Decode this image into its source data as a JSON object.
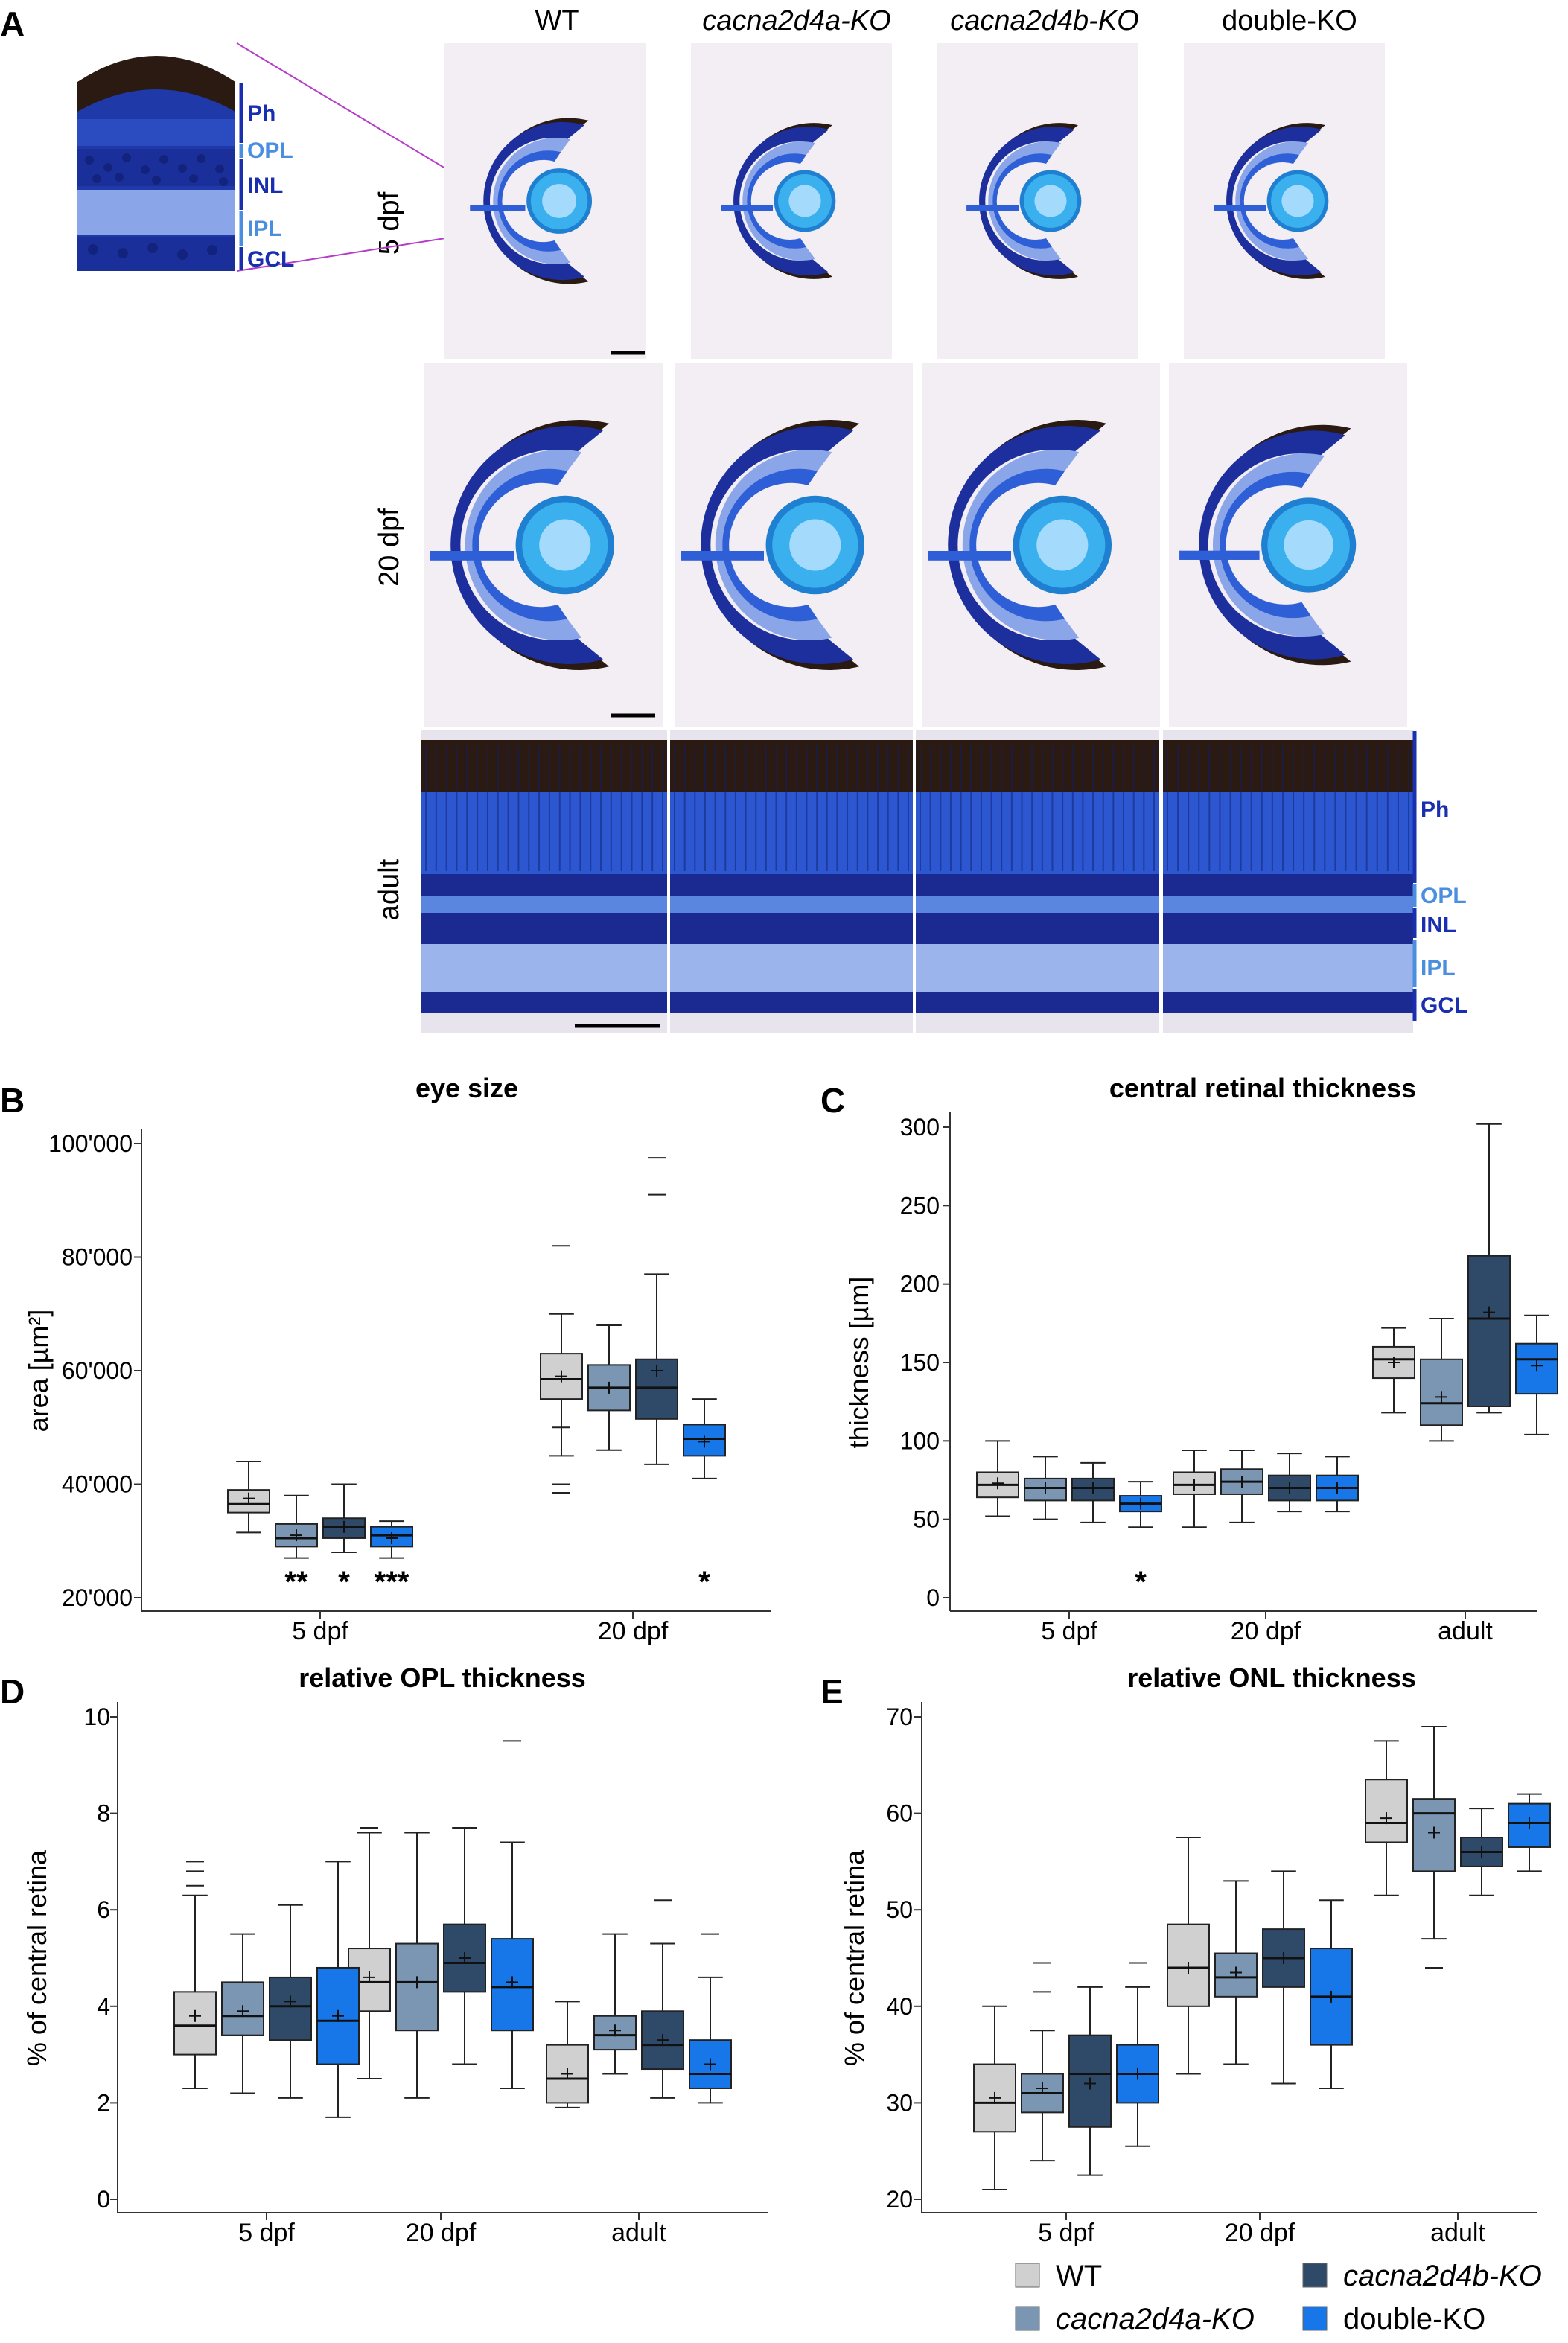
{
  "colors": {
    "WT": "#d0d0d0",
    "cacna2d4a-KO": "#7b96b3",
    "cacna2d4b-KO": "#2f4a69",
    "double-KO": "#1877e8",
    "stain_dark": "#1c2f9c",
    "stain_mid": "#2f5fd6",
    "stain_light": "#8aa6e8",
    "lens": "#3ab0ee",
    "pigment": "#2a1a12",
    "layer_dark": "#1a2fb0",
    "layer_light": "#4a8ee0"
  },
  "panel_a": {
    "letter": "A",
    "columns": [
      "WT",
      "cacna2d4a-KO",
      "cacna2d4b-KO",
      "double-KO"
    ],
    "rows": [
      "5 dpf",
      "20 dpf",
      "adult"
    ],
    "inset_layers": [
      "Ph",
      "OPL",
      "INL",
      "IPL",
      "GCL"
    ],
    "adult_layers": [
      "Ph",
      "OPL",
      "INL",
      "IPL",
      "GCL"
    ]
  },
  "legend": [
    {
      "label": "WT",
      "color": "#d0d0d0"
    },
    {
      "label": "cacna2d4a-KO",
      "color": "#7b96b3"
    },
    {
      "label": "cacna2d4b-KO",
      "color": "#2f4a69"
    },
    {
      "label": "double-KO",
      "color": "#1877e8"
    }
  ],
  "chart_data": [
    {
      "letter": "B",
      "type": "box",
      "title": "eye size",
      "ylabel": "area [µm²]",
      "ylim": [
        20000,
        100000
      ],
      "yticks": [
        20000,
        40000,
        60000,
        80000,
        100000
      ],
      "ytick_labels": [
        "20'000",
        "40'000",
        "60'000",
        "80'000",
        "100'000"
      ],
      "categories": [
        "5 dpf",
        "20 dpf"
      ],
      "series": [
        {
          "name": "WT",
          "values": [
            {
              "min": 31500,
              "q1": 35000,
              "median": 36500,
              "q3": 39000,
              "max": 44000,
              "mean": 37500,
              "outliers": [],
              "sig": ""
            },
            {
              "min": 45000,
              "q1": 55000,
              "median": 58500,
              "q3": 63000,
              "max": 70000,
              "mean": 59000,
              "outliers": [
                82000,
                50000,
                40000,
                38500
              ],
              "sig": ""
            }
          ]
        },
        {
          "name": "cacna2d4a-KO",
          "values": [
            {
              "min": 27000,
              "q1": 29000,
              "median": 30500,
              "q3": 33000,
              "max": 38000,
              "mean": 31000,
              "outliers": [],
              "sig": "**"
            },
            {
              "min": 46000,
              "q1": 53000,
              "median": 57000,
              "q3": 61000,
              "max": 68000,
              "mean": 57000,
              "outliers": [],
              "sig": ""
            }
          ]
        },
        {
          "name": "cacna2d4b-KO",
          "values": [
            {
              "min": 28000,
              "q1": 30500,
              "median": 32500,
              "q3": 34000,
              "max": 40000,
              "mean": 32500,
              "outliers": [],
              "sig": "*"
            },
            {
              "min": 43500,
              "q1": 51500,
              "median": 57000,
              "q3": 62000,
              "max": 77000,
              "mean": 60000,
              "outliers": [
                97500,
                91000
              ],
              "sig": ""
            }
          ]
        },
        {
          "name": "double-KO",
          "values": [
            {
              "min": 27000,
              "q1": 29000,
              "median": 31000,
              "q3": 32500,
              "max": 33500,
              "mean": 30500,
              "outliers": [],
              "sig": "***"
            },
            {
              "min": 41000,
              "q1": 45000,
              "median": 48000,
              "q3": 50500,
              "max": 55000,
              "mean": 47500,
              "outliers": [],
              "sig": "*"
            }
          ]
        }
      ]
    },
    {
      "letter": "C",
      "type": "box",
      "title": "central retinal thickness",
      "ylabel": "thickness [µm]",
      "ylim": [
        0,
        300
      ],
      "yticks": [
        0,
        50,
        100,
        150,
        200,
        250,
        300
      ],
      "ytick_labels": [
        "0",
        "50",
        "100",
        "150",
        "200",
        "250",
        "300"
      ],
      "categories": [
        "5 dpf",
        "20 dpf",
        "adult"
      ],
      "series": [
        {
          "name": "WT",
          "values": [
            {
              "min": 52,
              "q1": 64,
              "median": 72,
              "q3": 80,
              "max": 100,
              "mean": 73,
              "outliers": [],
              "sig": ""
            },
            {
              "min": 45,
              "q1": 66,
              "median": 72,
              "q3": 80,
              "max": 94,
              "mean": 72,
              "outliers": [],
              "sig": ""
            },
            {
              "min": 118,
              "q1": 140,
              "median": 152,
              "q3": 160,
              "max": 172,
              "mean": 150,
              "outliers": [],
              "sig": ""
            }
          ]
        },
        {
          "name": "cacna2d4a-KO",
          "values": [
            {
              "min": 50,
              "q1": 62,
              "median": 70,
              "q3": 76,
              "max": 90,
              "mean": 70,
              "outliers": [],
              "sig": ""
            },
            {
              "min": 48,
              "q1": 66,
              "median": 74,
              "q3": 82,
              "max": 94,
              "mean": 74,
              "outliers": [],
              "sig": ""
            },
            {
              "min": 100,
              "q1": 110,
              "median": 124,
              "q3": 152,
              "max": 178,
              "mean": 128,
              "outliers": [],
              "sig": ""
            }
          ]
        },
        {
          "name": "cacna2d4b-KO",
          "values": [
            {
              "min": 48,
              "q1": 62,
              "median": 70,
              "q3": 76,
              "max": 86,
              "mean": 70,
              "outliers": [],
              "sig": ""
            },
            {
              "min": 55,
              "q1": 62,
              "median": 70,
              "q3": 78,
              "max": 92,
              "mean": 70,
              "outliers": [],
              "sig": ""
            },
            {
              "min": 118,
              "q1": 122,
              "median": 178,
              "q3": 218,
              "max": 302,
              "mean": 182,
              "outliers": [],
              "sig": ""
            }
          ]
        },
        {
          "name": "double-KO",
          "values": [
            {
              "min": 45,
              "q1": 55,
              "median": 60,
              "q3": 65,
              "max": 74,
              "mean": 60,
              "outliers": [],
              "sig": "*"
            },
            {
              "min": 55,
              "q1": 62,
              "median": 70,
              "q3": 78,
              "max": 90,
              "mean": 70,
              "outliers": [],
              "sig": ""
            },
            {
              "min": 104,
              "q1": 130,
              "median": 152,
              "q3": 162,
              "max": 180,
              "mean": 148,
              "outliers": [],
              "sig": ""
            }
          ]
        }
      ]
    },
    {
      "letter": "D",
      "type": "box",
      "title": "relative OPL thickness",
      "ylabel": "% of central retina",
      "ylim": [
        0,
        10
      ],
      "yticks": [
        0,
        2,
        4,
        6,
        8,
        10
      ],
      "ytick_labels": [
        "0",
        "2",
        "4",
        "6",
        "8",
        "10"
      ],
      "categories": [
        "5 dpf",
        "20 dpf",
        "adult"
      ],
      "series": [
        {
          "name": "WT",
          "values": [
            {
              "min": 2.3,
              "q1": 3.0,
              "median": 3.6,
              "q3": 4.3,
              "max": 6.3,
              "mean": 3.8,
              "outliers": [
                7.0,
                6.8,
                6.5
              ],
              "sig": ""
            },
            {
              "min": 2.5,
              "q1": 3.9,
              "median": 4.5,
              "q3": 5.2,
              "max": 7.6,
              "mean": 4.6,
              "outliers": [
                7.7
              ],
              "sig": ""
            },
            {
              "min": 1.9,
              "q1": 2.0,
              "median": 2.5,
              "q3": 3.2,
              "max": 4.1,
              "mean": 2.6,
              "outliers": [],
              "sig": ""
            }
          ]
        },
        {
          "name": "cacna2d4a-KO",
          "values": [
            {
              "min": 2.2,
              "q1": 3.4,
              "median": 3.8,
              "q3": 4.5,
              "max": 5.5,
              "mean": 3.9,
              "outliers": [],
              "sig": ""
            },
            {
              "min": 2.1,
              "q1": 3.5,
              "median": 4.5,
              "q3": 5.3,
              "max": 7.6,
              "mean": 4.5,
              "outliers": [],
              "sig": ""
            },
            {
              "min": 2.6,
              "q1": 3.1,
              "median": 3.4,
              "q3": 3.8,
              "max": 5.5,
              "mean": 3.5,
              "outliers": [],
              "sig": ""
            }
          ]
        },
        {
          "name": "cacna2d4b-KO",
          "values": [
            {
              "min": 2.1,
              "q1": 3.3,
              "median": 4.0,
              "q3": 4.6,
              "max": 6.1,
              "mean": 4.1,
              "outliers": [],
              "sig": ""
            },
            {
              "min": 2.8,
              "q1": 4.3,
              "median": 4.9,
              "q3": 5.7,
              "max": 7.7,
              "mean": 5.0,
              "outliers": [],
              "sig": ""
            },
            {
              "min": 2.1,
              "q1": 2.7,
              "median": 3.2,
              "q3": 3.9,
              "max": 5.3,
              "mean": 3.3,
              "outliers": [
                6.2
              ],
              "sig": ""
            }
          ]
        },
        {
          "name": "double-KO",
          "values": [
            {
              "min": 1.7,
              "q1": 2.8,
              "median": 3.7,
              "q3": 4.8,
              "max": 7.0,
              "mean": 3.8,
              "outliers": [],
              "sig": ""
            },
            {
              "min": 2.3,
              "q1": 3.5,
              "median": 4.4,
              "q3": 5.4,
              "max": 7.4,
              "mean": 4.5,
              "outliers": [
                9.5
              ],
              "sig": ""
            },
            {
              "min": 2.0,
              "q1": 2.3,
              "median": 2.6,
              "q3": 3.3,
              "max": 4.6,
              "mean": 2.8,
              "outliers": [
                5.5
              ],
              "sig": ""
            }
          ]
        }
      ]
    },
    {
      "letter": "E",
      "type": "box",
      "title": "relative ONL thickness",
      "ylabel": "% of central retina",
      "ylim": [
        20,
        70
      ],
      "yticks": [
        20,
        30,
        40,
        50,
        60,
        70
      ],
      "ytick_labels": [
        "20",
        "30",
        "40",
        "50",
        "60",
        "70"
      ],
      "categories": [
        "5 dpf",
        "20 dpf",
        "adult"
      ],
      "series": [
        {
          "name": "WT",
          "values": [
            {
              "min": 21,
              "q1": 27,
              "median": 30,
              "q3": 34,
              "max": 40,
              "mean": 30.5,
              "outliers": [],
              "sig": ""
            },
            {
              "min": 33,
              "q1": 40,
              "median": 44,
              "q3": 48.5,
              "max": 57.5,
              "mean": 44,
              "outliers": [],
              "sig": ""
            },
            {
              "min": 51.5,
              "q1": 57,
              "median": 59,
              "q3": 63.5,
              "max": 67.5,
              "mean": 59.5,
              "outliers": [],
              "sig": ""
            }
          ]
        },
        {
          "name": "cacna2d4a-KO",
          "values": [
            {
              "min": 24,
              "q1": 29,
              "median": 31,
              "q3": 33,
              "max": 37.5,
              "mean": 31.5,
              "outliers": [
                44.5,
                41.5
              ],
              "sig": ""
            },
            {
              "min": 34,
              "q1": 41,
              "median": 43,
              "q3": 45.5,
              "max": 53,
              "mean": 43.5,
              "outliers": [],
              "sig": ""
            },
            {
              "min": 47,
              "q1": 54,
              "median": 60,
              "q3": 61.5,
              "max": 69,
              "mean": 58,
              "outliers": [
                44
              ],
              "sig": ""
            }
          ]
        },
        {
          "name": "cacna2d4b-KO",
          "values": [
            {
              "min": 22.5,
              "q1": 27.5,
              "median": 33,
              "q3": 37,
              "max": 42,
              "mean": 32,
              "outliers": [],
              "sig": ""
            },
            {
              "min": 32,
              "q1": 42,
              "median": 45,
              "q3": 48,
              "max": 54,
              "mean": 45,
              "outliers": [],
              "sig": ""
            },
            {
              "min": 51.5,
              "q1": 54.5,
              "median": 56,
              "q3": 57.5,
              "max": 60.5,
              "mean": 56,
              "outliers": [],
              "sig": ""
            }
          ]
        },
        {
          "name": "double-KO",
          "values": [
            {
              "min": 25.5,
              "q1": 30,
              "median": 33,
              "q3": 36,
              "max": 42,
              "mean": 33,
              "outliers": [
                44.5
              ],
              "sig": ""
            },
            {
              "min": 31.5,
              "q1": 36,
              "median": 41,
              "q3": 46,
              "max": 51,
              "mean": 41,
              "outliers": [],
              "sig": ""
            },
            {
              "min": 54,
              "q1": 56.5,
              "median": 59,
              "q3": 61,
              "max": 62,
              "mean": 59,
              "outliers": [],
              "sig": ""
            }
          ]
        }
      ]
    }
  ]
}
